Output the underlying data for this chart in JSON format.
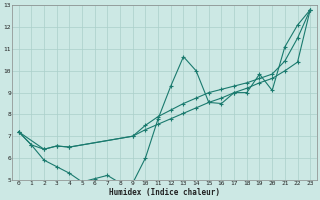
{
  "xlabel": "Humidex (Indice chaleur)",
  "bg_color": "#cce8e4",
  "line_color": "#1a7a6e",
  "grid_color": "#aacfca",
  "xlim": [
    -0.5,
    23.5
  ],
  "ylim": [
    5,
    13
  ],
  "xticks": [
    0,
    1,
    2,
    3,
    4,
    5,
    6,
    7,
    8,
    9,
    10,
    11,
    12,
    13,
    14,
    15,
    16,
    17,
    18,
    19,
    20,
    21,
    22,
    23
  ],
  "yticks": [
    5,
    6,
    7,
    8,
    9,
    10,
    11,
    12,
    13
  ],
  "line1_x": [
    0,
    1,
    2,
    3,
    4,
    5,
    6,
    7,
    8,
    9,
    10,
    11,
    12,
    13,
    14,
    15,
    16,
    17,
    18,
    19,
    20,
    21,
    22,
    23
  ],
  "line1_y": [
    7.2,
    6.6,
    5.9,
    5.6,
    5.3,
    4.9,
    5.05,
    5.2,
    4.85,
    4.85,
    6.0,
    7.8,
    9.3,
    10.65,
    10.0,
    8.55,
    8.5,
    9.0,
    9.0,
    9.85,
    9.1,
    11.1,
    12.1,
    12.8
  ],
  "line2_x": [
    0,
    2,
    3,
    4,
    9,
    10,
    11,
    12,
    13,
    14,
    15,
    16,
    17,
    18,
    19,
    20,
    21,
    22,
    23
  ],
  "line2_y": [
    7.2,
    6.4,
    6.55,
    6.5,
    7.0,
    7.3,
    7.55,
    7.8,
    8.05,
    8.3,
    8.55,
    8.75,
    9.0,
    9.2,
    9.45,
    9.65,
    10.0,
    10.4,
    12.8
  ],
  "line3_x": [
    0,
    1,
    2,
    3,
    4,
    9,
    10,
    11,
    12,
    13,
    14,
    15,
    16,
    17,
    18,
    19,
    20,
    21,
    22,
    23
  ],
  "line3_y": [
    7.2,
    6.6,
    6.4,
    6.55,
    6.5,
    7.0,
    7.5,
    7.9,
    8.2,
    8.5,
    8.75,
    9.0,
    9.15,
    9.3,
    9.45,
    9.65,
    9.85,
    10.45,
    11.5,
    12.8
  ]
}
